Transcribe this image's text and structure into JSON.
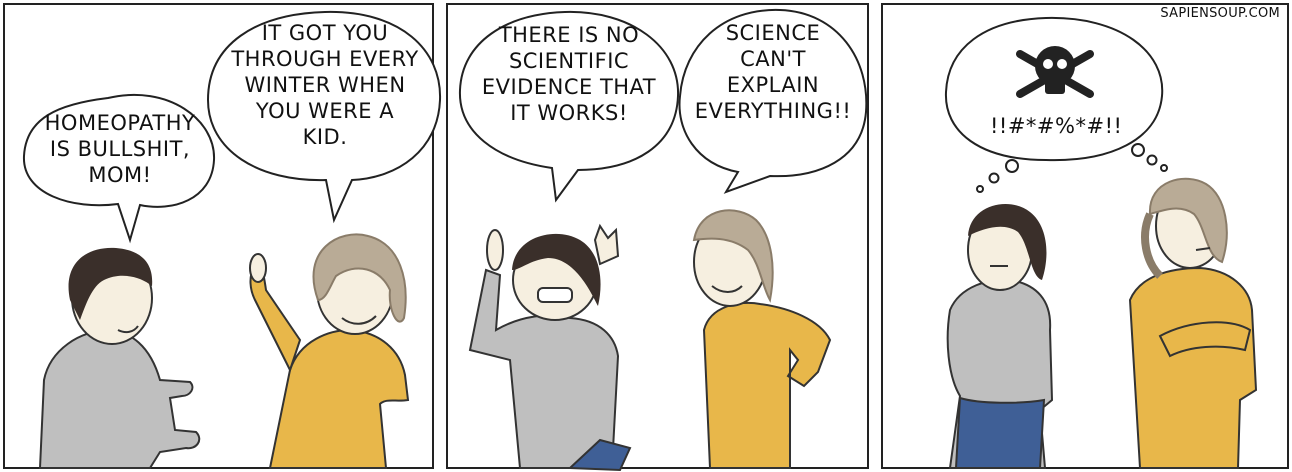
{
  "site_name": "SAPIENSOUP.COM",
  "panels": [
    {
      "bubbles": [
        {
          "text": "HOMEOPATHY\nIS BULLSHIT,\nMOM!"
        },
        {
          "text": "IT GOT YOU\nTHROUGH EVERY\nWINTER WHEN\nYOU WERE A\nKID."
        }
      ]
    },
    {
      "bubbles": [
        {
          "text": "THERE IS NO\nSCIENTIFIC\nEVIDENCE THAT\nIT WORKS!"
        },
        {
          "text": "SCIENCE\nCAN'T\nEXPLAIN\nEVERYTHING!!"
        }
      ]
    },
    {
      "thought": {
        "text": "!!#*#%*#!!",
        "icon": "skull-crossbones-icon"
      }
    }
  ],
  "colors": {
    "gray_shirt": "#bfbfbf",
    "yellow_shirt": "#e8b74a",
    "jeans": "#3f5f96",
    "skin": "#f6efe0",
    "dark_hair": "#3a2f2a",
    "curly_hair": "#b9ab96"
  }
}
